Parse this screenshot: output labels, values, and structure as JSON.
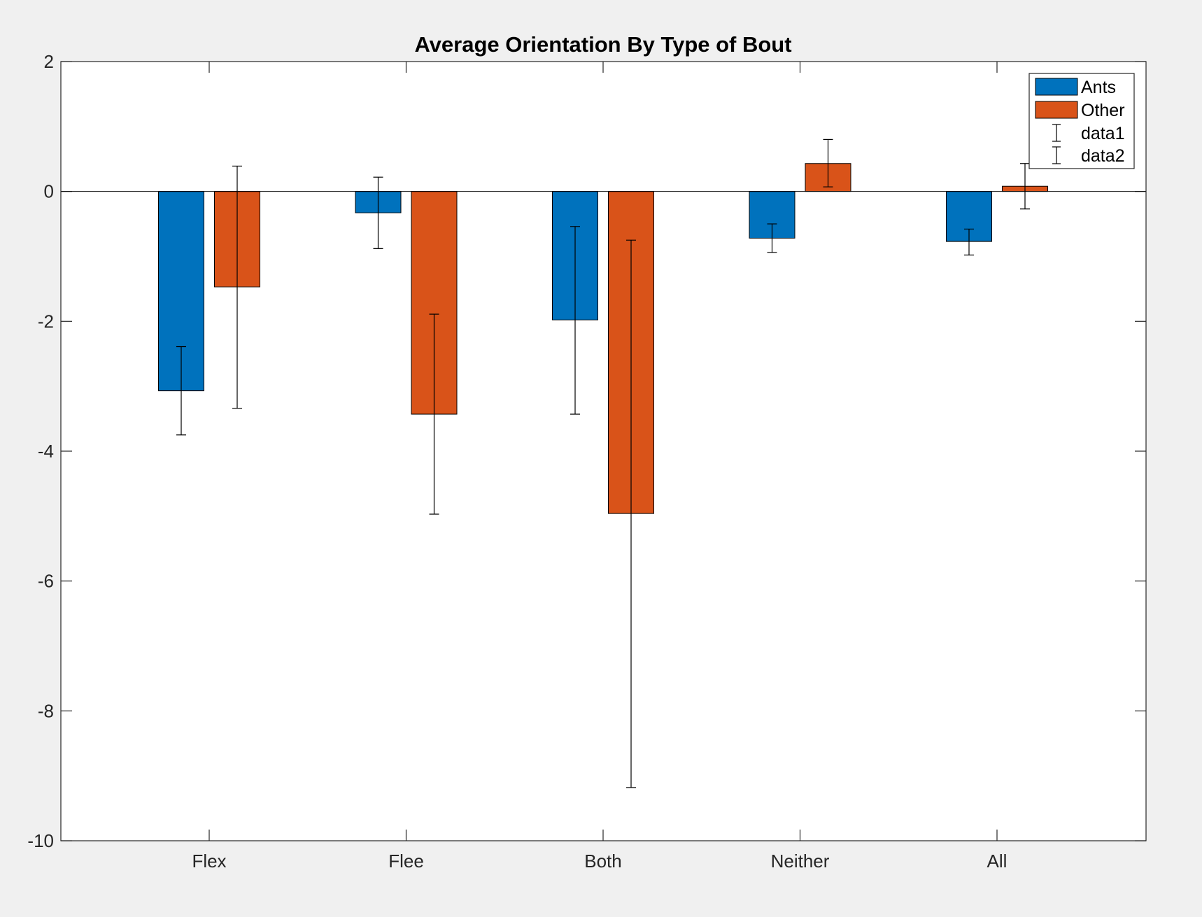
{
  "chart_data": {
    "type": "bar",
    "title": "Average Orientation By Type of Bout",
    "xlabel": "",
    "ylabel": "",
    "categories": [
      "Flex",
      "Flee",
      "Both",
      "Neither",
      "All"
    ],
    "ylim": [
      -10,
      2
    ],
    "yticks": [
      2,
      0,
      -2,
      -4,
      -6,
      -8,
      -10
    ],
    "series": [
      {
        "name": "Ants",
        "color": "#0072bd",
        "values": [
          -3.07,
          -0.33,
          -1.98,
          -0.72,
          -0.77
        ],
        "err_low": [
          -3.75,
          -0.88,
          -3.43,
          -0.94,
          -0.98
        ],
        "err_high": [
          -2.39,
          0.22,
          -0.54,
          -0.5,
          -0.58
        ]
      },
      {
        "name": "Other",
        "color": "#d95319",
        "values": [
          -1.47,
          -3.43,
          -4.96,
          0.43,
          0.08
        ],
        "err_low": [
          -3.34,
          -4.97,
          -9.18,
          0.07,
          -0.27
        ],
        "err_high": [
          0.39,
          -1.89,
          -0.75,
          0.8,
          0.43
        ]
      }
    ],
    "legend": {
      "position": "top-right",
      "entries": [
        "Ants",
        "Other",
        "data1",
        "data2"
      ]
    },
    "grid": false
  }
}
